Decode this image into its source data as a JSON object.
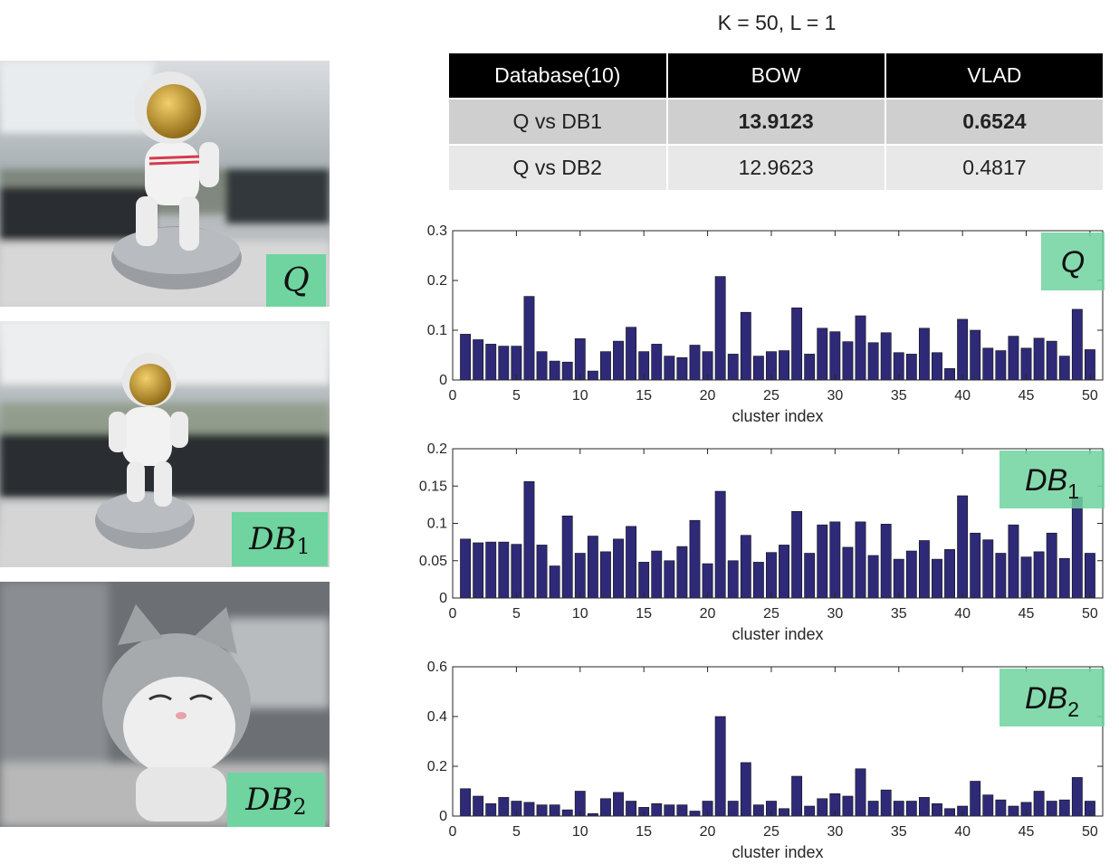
{
  "heading": "K = 50, L = 1",
  "table": {
    "headers": [
      "Database(10)",
      "BOW",
      "VLAD"
    ],
    "rows": [
      [
        "Q vs DB1",
        "13.9123",
        "0.6524"
      ],
      [
        "Q vs DB2",
        "12.9623",
        "0.4817"
      ]
    ]
  },
  "photos": [
    {
      "label_main": "Q",
      "label_sub": ""
    },
    {
      "label_main": "DB",
      "label_sub": "1"
    },
    {
      "label_main": "DB",
      "label_sub": "2"
    }
  ],
  "colors": {
    "bar": "#2e2a78",
    "label_bg": "#6fd49f",
    "header_bg": "#000000"
  },
  "chart_data": [
    {
      "type": "bar",
      "legend_main": "Q",
      "legend_sub": "",
      "xlabel": "cluster index",
      "ylabel": "",
      "xlim": [
        0,
        51
      ],
      "ylim": [
        0,
        0.3
      ],
      "xticks": [
        0,
        5,
        10,
        15,
        20,
        25,
        30,
        35,
        40,
        45,
        50
      ],
      "yticks": [
        0,
        0.1,
        0.2,
        0.3
      ],
      "ytick_labels": [
        "0",
        "0.1",
        "0.2",
        "0.3"
      ],
      "categories": [
        1,
        2,
        3,
        4,
        5,
        6,
        7,
        8,
        9,
        10,
        11,
        12,
        13,
        14,
        15,
        16,
        17,
        18,
        19,
        20,
        21,
        22,
        23,
        24,
        25,
        26,
        27,
        28,
        29,
        30,
        31,
        32,
        33,
        34,
        35,
        36,
        37,
        38,
        39,
        40,
        41,
        42,
        43,
        44,
        45,
        46,
        47,
        48,
        49,
        50
      ],
      "values": [
        0.092,
        0.081,
        0.072,
        0.068,
        0.068,
        0.168,
        0.057,
        0.038,
        0.036,
        0.083,
        0.018,
        0.057,
        0.078,
        0.106,
        0.057,
        0.072,
        0.048,
        0.045,
        0.07,
        0.057,
        0.208,
        0.052,
        0.136,
        0.048,
        0.057,
        0.059,
        0.145,
        0.052,
        0.104,
        0.097,
        0.077,
        0.129,
        0.075,
        0.095,
        0.055,
        0.052,
        0.104,
        0.055,
        0.023,
        0.122,
        0.1,
        0.064,
        0.059,
        0.088,
        0.064,
        0.084,
        0.078,
        0.048,
        0.142,
        0.061
      ]
    },
    {
      "type": "bar",
      "legend_main": "DB",
      "legend_sub": "1",
      "xlabel": "cluster index",
      "ylabel": "",
      "xlim": [
        0,
        51
      ],
      "ylim": [
        0,
        0.2
      ],
      "xticks": [
        0,
        5,
        10,
        15,
        20,
        25,
        30,
        35,
        40,
        45,
        50
      ],
      "yticks": [
        0,
        0.05,
        0.1,
        0.15,
        0.2
      ],
      "ytick_labels": [
        "0",
        "0.05",
        "0.1",
        "0.15",
        "0.2"
      ],
      "categories": [
        1,
        2,
        3,
        4,
        5,
        6,
        7,
        8,
        9,
        10,
        11,
        12,
        13,
        14,
        15,
        16,
        17,
        18,
        19,
        20,
        21,
        22,
        23,
        24,
        25,
        26,
        27,
        28,
        29,
        30,
        31,
        32,
        33,
        34,
        35,
        36,
        37,
        38,
        39,
        40,
        41,
        42,
        43,
        44,
        45,
        46,
        47,
        48,
        49,
        50
      ],
      "values": [
        0.079,
        0.074,
        0.075,
        0.075,
        0.072,
        0.156,
        0.071,
        0.043,
        0.11,
        0.06,
        0.083,
        0.062,
        0.079,
        0.096,
        0.048,
        0.063,
        0.05,
        0.069,
        0.104,
        0.046,
        0.143,
        0.05,
        0.084,
        0.048,
        0.061,
        0.071,
        0.116,
        0.06,
        0.098,
        0.102,
        0.068,
        0.102,
        0.057,
        0.099,
        0.052,
        0.063,
        0.077,
        0.052,
        0.065,
        0.137,
        0.087,
        0.078,
        0.06,
        0.098,
        0.055,
        0.062,
        0.087,
        0.053,
        0.135,
        0.06
      ]
    },
    {
      "type": "bar",
      "legend_main": "DB",
      "legend_sub": "2",
      "xlabel": "cluster index",
      "ylabel": "",
      "xlim": [
        0,
        51
      ],
      "ylim": [
        0,
        0.6
      ],
      "xticks": [
        0,
        5,
        10,
        15,
        20,
        25,
        30,
        35,
        40,
        45,
        50
      ],
      "yticks": [
        0,
        0.2,
        0.4,
        0.6
      ],
      "ytick_labels": [
        "0",
        "0.2",
        "0.4",
        "0.6"
      ],
      "categories": [
        1,
        2,
        3,
        4,
        5,
        6,
        7,
        8,
        9,
        10,
        11,
        12,
        13,
        14,
        15,
        16,
        17,
        18,
        19,
        20,
        21,
        22,
        23,
        24,
        25,
        26,
        27,
        28,
        29,
        30,
        31,
        32,
        33,
        34,
        35,
        36,
        37,
        38,
        39,
        40,
        41,
        42,
        43,
        44,
        45,
        46,
        47,
        48,
        49,
        50
      ],
      "values": [
        0.11,
        0.08,
        0.05,
        0.075,
        0.06,
        0.055,
        0.045,
        0.045,
        0.025,
        0.1,
        0.01,
        0.07,
        0.095,
        0.06,
        0.035,
        0.05,
        0.045,
        0.045,
        0.02,
        0.06,
        0.4,
        0.06,
        0.215,
        0.045,
        0.06,
        0.03,
        0.16,
        0.04,
        0.07,
        0.09,
        0.08,
        0.19,
        0.06,
        0.105,
        0.06,
        0.06,
        0.075,
        0.05,
        0.03,
        0.04,
        0.14,
        0.085,
        0.065,
        0.04,
        0.055,
        0.1,
        0.06,
        0.065,
        0.155,
        0.06
      ]
    }
  ]
}
